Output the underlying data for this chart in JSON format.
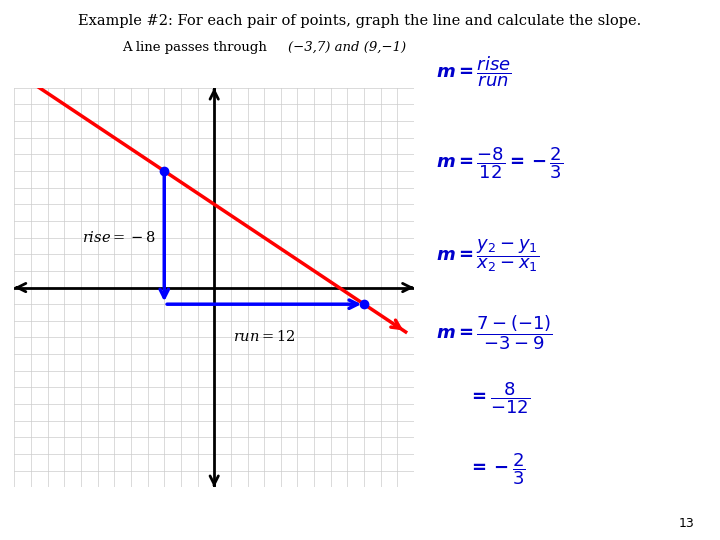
{
  "title": "Example #2: For each pair of points, graph the line and calculate the slope.",
  "subtitle_plain": "A line passes through",
  "subtitle_italic": "(−3,7) and (9,−1)",
  "point1": [
    -3,
    7
  ],
  "point2": [
    9,
    -1
  ],
  "grid_range": [
    -12,
    12
  ],
  "grid_color": "#cccccc",
  "axis_color": "#000000",
  "line_color": "#ff0000",
  "rise_run_color": "#0000ff",
  "rise_label": "$rise = -8$",
  "run_label": "$run = 12$",
  "bg_color": "#ffffff",
  "math_color": "#0000cc",
  "page_number": "13"
}
